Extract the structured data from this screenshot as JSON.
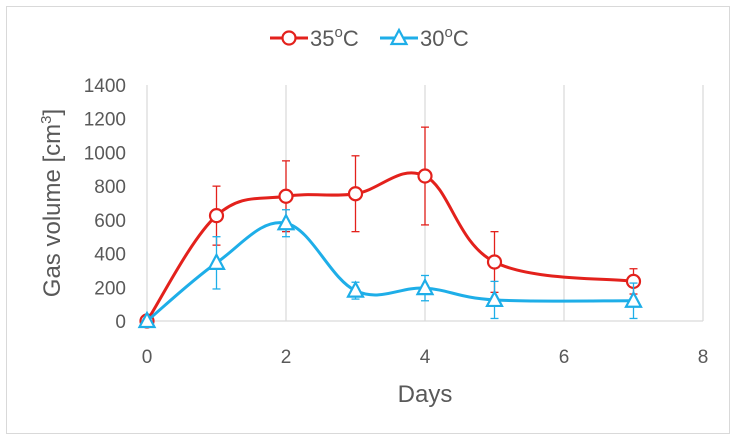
{
  "chart_data": {
    "type": "line",
    "title": "",
    "xlabel": "Days",
    "ylabel_main": "Gas volume [cm",
    "ylabel_sup": "3",
    "ylabel_close": "]",
    "xlim": [
      0,
      8
    ],
    "ylim": [
      0,
      1400
    ],
    "x_ticks": [
      "0",
      "2",
      "4",
      "6",
      "8"
    ],
    "y_ticks": [
      "0",
      "200",
      "400",
      "600",
      "800",
      "1000",
      "1200",
      "1400"
    ],
    "grid": "vertical",
    "legend_position": "top",
    "series": [
      {
        "name_main": "35",
        "name_sup": "o",
        "name_unit": "C",
        "color": "#e3211c",
        "marker": "circle",
        "x": [
          0,
          1,
          2,
          3,
          4,
          5,
          7
        ],
        "y": [
          0,
          625,
          740,
          755,
          860,
          350,
          235
        ],
        "err": [
          0,
          175,
          210,
          225,
          290,
          180,
          75
        ]
      },
      {
        "name_main": "30",
        "name_sup": "o",
        "name_unit": "C",
        "color": "#1eaee8",
        "marker": "triangle",
        "x": [
          0,
          1,
          2,
          3,
          4,
          5,
          7
        ],
        "y": [
          0,
          345,
          580,
          180,
          195,
          125,
          120
        ],
        "err": [
          0,
          155,
          80,
          50,
          75,
          110,
          105
        ]
      }
    ]
  }
}
